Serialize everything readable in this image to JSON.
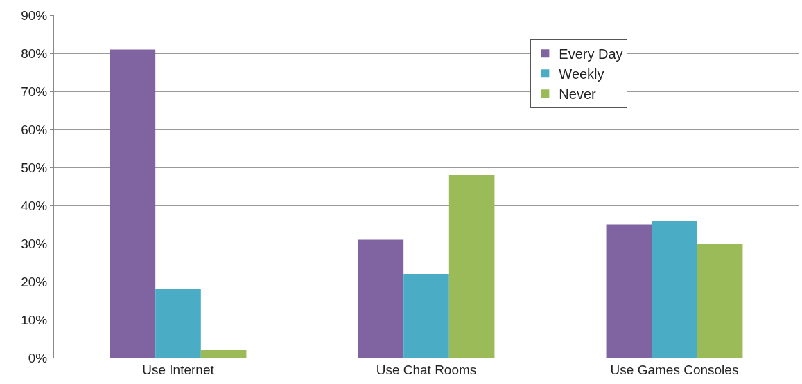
{
  "chart_data": {
    "type": "bar",
    "categories": [
      "Use Internet",
      "Use Chat Rooms",
      "Use Games Consoles"
    ],
    "series": [
      {
        "name": "Every Day",
        "color": "#8064a2",
        "values": [
          81,
          31,
          35
        ]
      },
      {
        "name": "Weekly",
        "color": "#4bacc6",
        "values": [
          18,
          22,
          36
        ]
      },
      {
        "name": "Never",
        "color": "#9bbb59",
        "values": [
          2,
          48,
          30
        ]
      }
    ],
    "ylim": [
      0,
      90
    ],
    "yticks": [
      {
        "value": 0,
        "label": "0%"
      },
      {
        "value": 10,
        "label": "10%"
      },
      {
        "value": 20,
        "label": "20%"
      },
      {
        "value": 30,
        "label": "30%"
      },
      {
        "value": 40,
        "label": "40%"
      },
      {
        "value": 50,
        "label": "50%"
      },
      {
        "value": 60,
        "label": "60%"
      },
      {
        "value": 70,
        "label": "70%"
      },
      {
        "value": 80,
        "label": "80%"
      },
      {
        "value": 90,
        "label": "90%"
      }
    ],
    "grid": "y",
    "legend": "top right"
  }
}
